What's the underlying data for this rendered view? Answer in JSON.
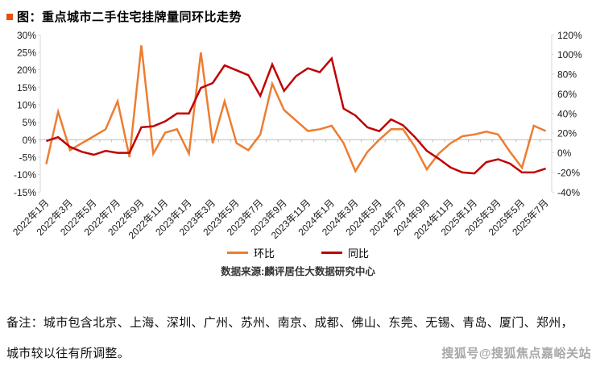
{
  "title": "图：重点城市二手住宅挂牌量同环比走势",
  "title_bullet_color": "#e8500f",
  "chart_data": {
    "type": "line",
    "x": [
      "2022年1月",
      "2022年2月",
      "2022年3月",
      "2022年4月",
      "2022年5月",
      "2022年6月",
      "2022年7月",
      "2022年8月",
      "2022年9月",
      "2022年10月",
      "2022年11月",
      "2022年12月",
      "2023年1月",
      "2023年2月",
      "2023年3月",
      "2023年4月",
      "2023年5月",
      "2023年6月",
      "2023年7月",
      "2023年8月",
      "2023年9月",
      "2023年10月",
      "2023年11月",
      "2023年12月",
      "2024年1月",
      "2024年2月",
      "2024年3月",
      "2024年4月",
      "2024年5月",
      "2024年6月",
      "2024年7月",
      "2024年8月",
      "2024年9月",
      "2024年10月",
      "2024年11月",
      "2024年12月",
      "2025年1月",
      "2025年2月",
      "2025年3月",
      "2025年4月",
      "2025年5月",
      "2025年6月",
      "2025年7月"
    ],
    "x_tick_every": 2,
    "series": [
      {
        "name": "环比",
        "axis": "left",
        "color": "#ED7D31",
        "values": [
          -7,
          8,
          -3,
          -1,
          1,
          3,
          11,
          -5,
          27,
          -4,
          2,
          3,
          -4,
          25,
          -1,
          11,
          -1,
          -3,
          1.5,
          16,
          8.5,
          5.5,
          2.5,
          3,
          4,
          -1,
          -9,
          -3.5,
          0,
          3,
          3,
          -2,
          -8.5,
          -4,
          -1,
          1,
          1.5,
          2.3,
          1.5,
          -3.5,
          -8,
          4,
          2.5
        ]
      },
      {
        "name": "同比",
        "axis": "right",
        "color": "#C00000",
        "values": [
          12,
          16,
          6,
          1,
          -2,
          2,
          0,
          0,
          26,
          27,
          32,
          40,
          40,
          66,
          71,
          89,
          84,
          79,
          58,
          90,
          63,
          78,
          86,
          82,
          96,
          45,
          38,
          26,
          22,
          34,
          28,
          16,
          2,
          -6,
          -15,
          -20,
          -21,
          -9.5,
          -6.5,
          -11,
          -20,
          -20,
          -16
        ]
      }
    ],
    "left_axis": {
      "min": -15,
      "max": 30,
      "step": 5,
      "suffix": "%"
    },
    "right_axis": {
      "min": -40,
      "max": 120,
      "step": 20,
      "suffix": "%"
    },
    "grid": "zero-line-only",
    "legend_position": "bottom-center",
    "axis_color": "#d9d9d9",
    "zero_line_color": "#bfbfbf",
    "tick_label_color": "#1a1a1a"
  },
  "legend": [
    {
      "label": "环比",
      "color": "#ED7D31"
    },
    {
      "label": "同比",
      "color": "#C00000"
    }
  ],
  "source": "数据来源:麟评居住大数据研究中心",
  "notes": {
    "line1": "备注：城市包含北京、上海、深圳、广州、苏州、南京、成都、佛山、东莞、无锡、青岛、厦门、郑州，",
    "line2": "城市较以往有所调整。"
  },
  "watermark": "搜狐号@搜狐焦点嘉峪关站"
}
